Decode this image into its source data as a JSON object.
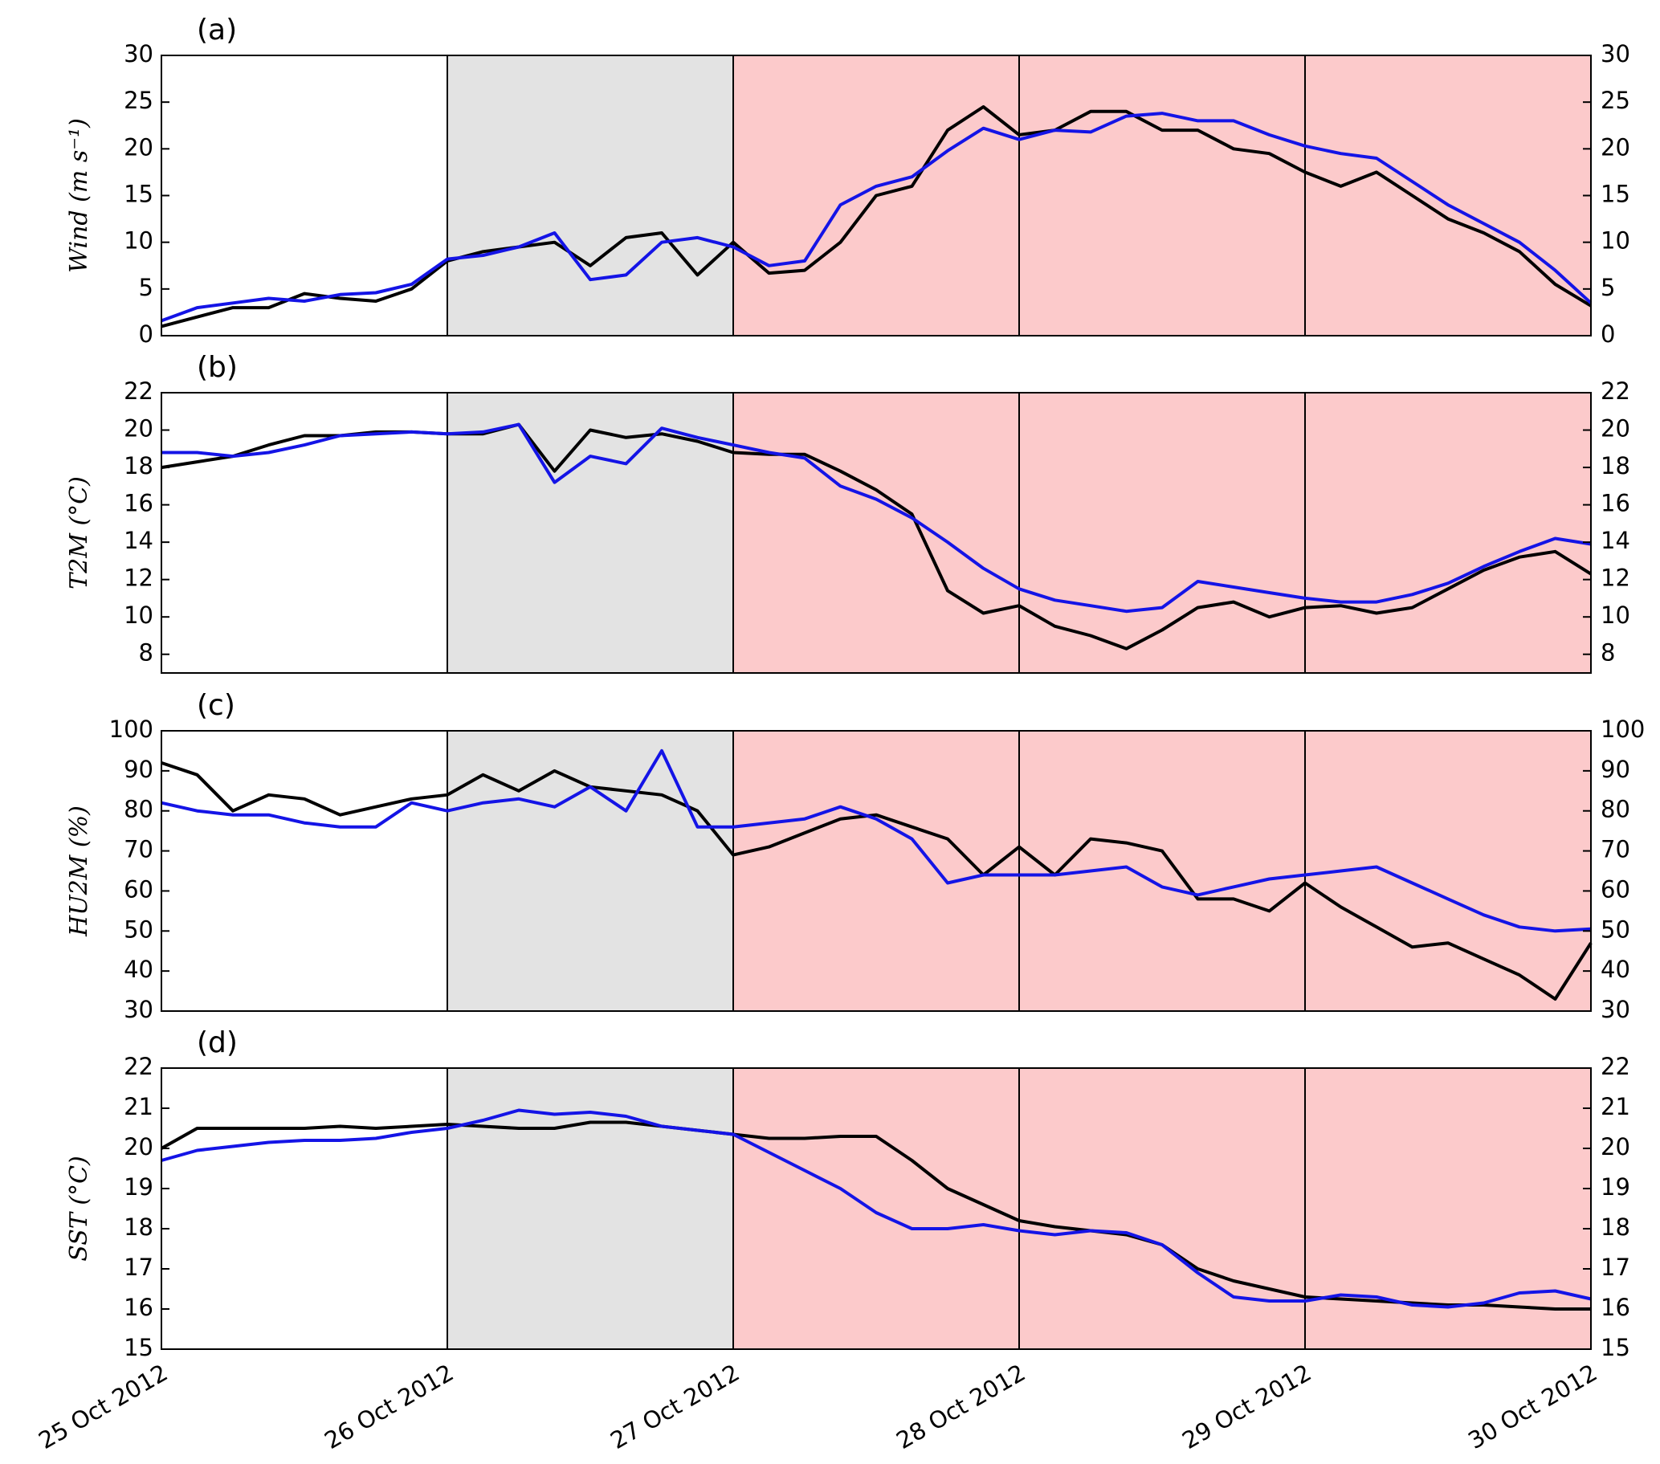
{
  "chart_data": [
    {
      "type": "line",
      "title": "(a)",
      "ylabel": "Wind (m s⁻¹)",
      "x": [
        0,
        0.125,
        0.25,
        0.375,
        0.5,
        0.625,
        0.75,
        0.875,
        1,
        1.125,
        1.25,
        1.375,
        1.5,
        1.625,
        1.75,
        1.875,
        2,
        2.125,
        2.25,
        2.375,
        2.5,
        2.625,
        2.75,
        2.875,
        3,
        3.125,
        3.25,
        3.375,
        3.5,
        3.625,
        3.75,
        3.875,
        4,
        4.125,
        4.25,
        4.375,
        4.5,
        4.625,
        4.75,
        4.875,
        5
      ],
      "series": [
        {
          "color": "#000000",
          "values": [
            1,
            2,
            3,
            3,
            4.5,
            4,
            3.7,
            5,
            8,
            9,
            9.5,
            10,
            7.5,
            10.5,
            11,
            6.5,
            10,
            6.7,
            7,
            10,
            15,
            16,
            22,
            24.5,
            21.5,
            22,
            24,
            24,
            22,
            22,
            20,
            19.5,
            17.5,
            16,
            17.5,
            15,
            12.5,
            11,
            9,
            5.5,
            3.2
          ]
        },
        {
          "color": "#1414e6",
          "values": [
            1.6,
            3,
            3.5,
            4,
            3.7,
            4.4,
            4.6,
            5.5,
            8.2,
            8.6,
            9.5,
            11,
            6,
            6.5,
            10,
            10.5,
            9.5,
            7.5,
            8,
            14,
            16,
            17,
            19.8,
            22.2,
            21,
            22,
            21.8,
            23.5,
            23.8,
            23,
            23,
            21.5,
            20.3,
            19.5,
            19,
            16.5,
            14,
            12,
            10,
            7,
            3.5
          ]
        }
      ],
      "xlim": [
        0,
        5
      ],
      "xticks": [
        0,
        1,
        2,
        3,
        4,
        5
      ],
      "ylim": [
        0,
        30
      ],
      "yticks": [
        0,
        5,
        10,
        15,
        20,
        25,
        30
      ],
      "shaded_regions": [
        {
          "xlim": [
            1,
            2
          ],
          "color": "#e3e3e3"
        },
        {
          "xlim": [
            2,
            5
          ],
          "color": "#fccacb"
        }
      ],
      "vlines": [
        1,
        2,
        3,
        4
      ]
    },
    {
      "type": "line",
      "title": "(b)",
      "ylabel": "T2M (°C)",
      "x": [
        0,
        0.125,
        0.25,
        0.375,
        0.5,
        0.625,
        0.75,
        0.875,
        1,
        1.125,
        1.25,
        1.375,
        1.5,
        1.625,
        1.75,
        1.875,
        2,
        2.125,
        2.25,
        2.375,
        2.5,
        2.625,
        2.75,
        2.875,
        3,
        3.125,
        3.25,
        3.375,
        3.5,
        3.625,
        3.75,
        3.875,
        4,
        4.125,
        4.25,
        4.375,
        4.5,
        4.625,
        4.75,
        4.875,
        5
      ],
      "series": [
        {
          "color": "#000000",
          "values": [
            18,
            18.3,
            18.6,
            19.2,
            19.7,
            19.7,
            19.9,
            19.9,
            19.8,
            19.8,
            20.3,
            17.8,
            20,
            19.6,
            19.8,
            19.4,
            18.8,
            18.7,
            18.7,
            17.8,
            16.8,
            15.5,
            11.4,
            10.2,
            10.6,
            9.5,
            9,
            8.3,
            9.3,
            10.5,
            10.8,
            10,
            10.5,
            10.6,
            10.2,
            10.5,
            11.5,
            12.5,
            13.2,
            13.5,
            12.3
          ]
        },
        {
          "color": "#1414e6",
          "values": [
            18.8,
            18.8,
            18.6,
            18.8,
            19.2,
            19.7,
            19.8,
            19.9,
            19.8,
            19.9,
            20.3,
            17.2,
            18.6,
            18.2,
            20.1,
            19.6,
            19.2,
            18.8,
            18.5,
            17,
            16.3,
            15.3,
            14,
            12.6,
            11.5,
            10.9,
            10.6,
            10.3,
            10.5,
            11.9,
            11.6,
            11.3,
            11,
            10.8,
            10.8,
            11.2,
            11.8,
            12.7,
            13.5,
            14.2,
            13.9
          ]
        }
      ],
      "xlim": [
        0,
        5
      ],
      "xticks": [
        0,
        1,
        2,
        3,
        4,
        5
      ],
      "ylim": [
        7,
        22
      ],
      "yticks": [
        8,
        10,
        12,
        14,
        16,
        18,
        20,
        22
      ],
      "shaded_regions": [
        {
          "xlim": [
            1,
            2
          ],
          "color": "#e3e3e3"
        },
        {
          "xlim": [
            2,
            5
          ],
          "color": "#fccacb"
        }
      ],
      "vlines": [
        1,
        2,
        3,
        4
      ]
    },
    {
      "type": "line",
      "title": "(c)",
      "ylabel": "HU2M (%)",
      "x": [
        0,
        0.125,
        0.25,
        0.375,
        0.5,
        0.625,
        0.75,
        0.875,
        1,
        1.125,
        1.25,
        1.375,
        1.5,
        1.625,
        1.75,
        1.875,
        2,
        2.125,
        2.25,
        2.375,
        2.5,
        2.625,
        2.75,
        2.875,
        3,
        3.125,
        3.25,
        3.375,
        3.5,
        3.625,
        3.75,
        3.875,
        4,
        4.125,
        4.25,
        4.375,
        4.5,
        4.625,
        4.75,
        4.875,
        5
      ],
      "series": [
        {
          "color": "#000000",
          "values": [
            92,
            89,
            80,
            84,
            83,
            79,
            81,
            83,
            84,
            89,
            85,
            90,
            86,
            85,
            84,
            80,
            69,
            71,
            74.5,
            78,
            79,
            76,
            73,
            64,
            71,
            64,
            73,
            72,
            70,
            58,
            58,
            55,
            62,
            56,
            51,
            46,
            47,
            43,
            39,
            33,
            47
          ]
        },
        {
          "color": "#1414e6",
          "values": [
            82,
            80,
            79,
            79,
            77,
            76,
            76,
            82,
            80,
            82,
            83,
            81,
            86,
            80,
            95,
            76,
            76,
            77,
            78,
            81,
            78,
            73,
            62,
            64,
            64,
            64,
            65,
            66,
            61,
            59,
            61,
            63,
            64,
            65,
            66,
            62,
            58,
            54,
            51,
            50,
            50.5
          ]
        }
      ],
      "xlim": [
        0,
        5
      ],
      "xticks": [
        0,
        1,
        2,
        3,
        4,
        5
      ],
      "ylim": [
        30,
        100
      ],
      "yticks": [
        30,
        40,
        50,
        60,
        70,
        80,
        90,
        100
      ],
      "shaded_regions": [
        {
          "xlim": [
            1,
            2
          ],
          "color": "#e3e3e3"
        },
        {
          "xlim": [
            2,
            5
          ],
          "color": "#fccacb"
        }
      ],
      "vlines": [
        1,
        2,
        3,
        4
      ]
    },
    {
      "type": "line",
      "title": "(d)",
      "ylabel": "SST (°C)",
      "x": [
        0,
        0.125,
        0.25,
        0.375,
        0.5,
        0.625,
        0.75,
        0.875,
        1,
        1.125,
        1.25,
        1.375,
        1.5,
        1.625,
        1.75,
        1.875,
        2,
        2.125,
        2.25,
        2.375,
        2.5,
        2.625,
        2.75,
        2.875,
        3,
        3.125,
        3.25,
        3.375,
        3.5,
        3.625,
        3.75,
        3.875,
        4,
        4.125,
        4.25,
        4.375,
        4.5,
        4.625,
        4.75,
        4.875,
        5
      ],
      "series": [
        {
          "color": "#000000",
          "values": [
            20,
            20.5,
            20.5,
            20.5,
            20.5,
            20.55,
            20.5,
            20.55,
            20.6,
            20.55,
            20.5,
            20.5,
            20.65,
            20.65,
            20.55,
            20.45,
            20.35,
            20.25,
            20.25,
            20.3,
            20.3,
            19.7,
            19,
            18.6,
            18.2,
            18.05,
            17.95,
            17.85,
            17.6,
            17,
            16.7,
            16.5,
            16.3,
            16.25,
            16.2,
            16.15,
            16.1,
            16.1,
            16.05,
            16,
            16
          ]
        },
        {
          "color": "#1414e6",
          "values": [
            19.7,
            19.95,
            20.05,
            20.15,
            20.2,
            20.2,
            20.25,
            20.4,
            20.5,
            20.7,
            20.95,
            20.85,
            20.9,
            20.8,
            20.55,
            20.45,
            20.35,
            19.9,
            19.45,
            19,
            18.4,
            18,
            18,
            18.1,
            17.95,
            17.85,
            17.95,
            17.9,
            17.6,
            16.9,
            16.3,
            16.2,
            16.2,
            16.35,
            16.3,
            16.1,
            16.05,
            16.15,
            16.4,
            16.45,
            16.25
          ]
        }
      ],
      "xlim": [
        0,
        5
      ],
      "xticks": [
        {
          "value": 0,
          "label": "25 Oct 2012"
        },
        {
          "value": 1,
          "label": "26 Oct 2012"
        },
        {
          "value": 2,
          "label": "27 Oct 2012"
        },
        {
          "value": 3,
          "label": "28 Oct 2012"
        },
        {
          "value": 4,
          "label": "29 Oct 2012"
        },
        {
          "value": 5,
          "label": "30 Oct 2012"
        }
      ],
      "ylim": [
        15,
        22
      ],
      "yticks": [
        15,
        16,
        17,
        18,
        19,
        20,
        21,
        22
      ],
      "shaded_regions": [
        {
          "xlim": [
            1,
            2
          ],
          "color": "#e3e3e3"
        },
        {
          "xlim": [
            2,
            5
          ],
          "color": "#fccacb"
        }
      ],
      "vlines": [
        1,
        2,
        3,
        4
      ]
    }
  ]
}
